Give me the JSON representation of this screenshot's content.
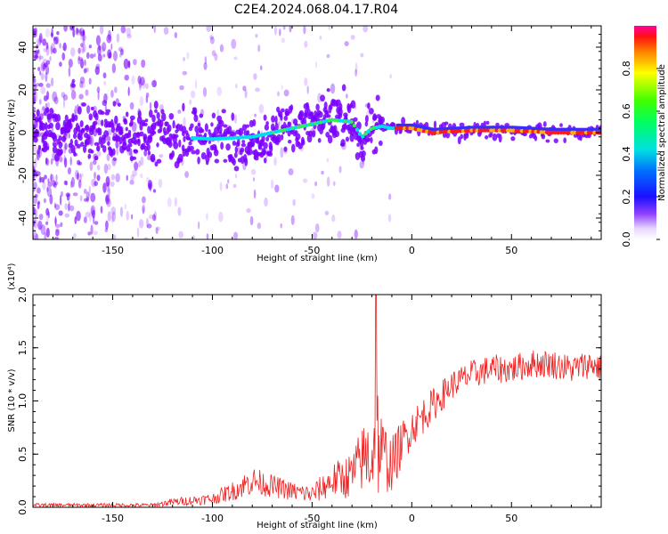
{
  "title": "C2E4.2024.068.04.17.R04",
  "colors": {
    "snr_line": "#ee2222",
    "blob_low": "#7a00ff",
    "blob_mid": "#00ddee",
    "blob_high": "#ff1a1a",
    "frame": "#000000"
  },
  "chart_data": [
    {
      "type": "heatmap",
      "name": "spectrogram",
      "title": "C2E4.2024.068.04.17.R04",
      "xlabel": "Height of straight line (km)",
      "ylabel": "Frequency (Hz)",
      "xlim": [
        -190,
        95
      ],
      "ylim": [
        -50,
        50
      ],
      "x_ticks": [
        -150,
        -100,
        -50,
        0,
        50
      ],
      "x_tick_labels": [
        "-150",
        "-100",
        "-50",
        "0",
        "50"
      ],
      "y_ticks": [
        -40,
        -20,
        0,
        20,
        40
      ],
      "y_tick_labels": [
        "-40",
        "-20",
        "0",
        "20",
        "40"
      ],
      "ridge": {
        "x": [
          -190,
          -150,
          -120,
          -100,
          -80,
          -70,
          -60,
          -50,
          -40,
          -30,
          -25,
          -20,
          -15,
          -10,
          0,
          10,
          30,
          50,
          70,
          95
        ],
        "frequency": [
          0,
          0,
          -2,
          -3,
          -2,
          0,
          2,
          4,
          6,
          5,
          -2,
          2,
          3,
          2,
          2,
          0,
          1,
          1,
          0,
          0
        ]
      },
      "colorbar": {
        "label": "Normalized spectral amplitude",
        "range": [
          0.0,
          1.0
        ],
        "ticks": [
          0.0,
          0.2,
          0.4,
          0.6,
          0.8
        ],
        "tick_labels": [
          "0.0",
          "0.2",
          "0.4",
          "0.6",
          "0.8"
        ]
      }
    },
    {
      "type": "line",
      "name": "snr",
      "xlabel": "Height of straight line (km)",
      "ylabel": "SNR (10 * v/v)",
      "scale_label": "(x10⁴)",
      "xlim": [
        -190,
        95
      ],
      "ylim": [
        0.0,
        2.0
      ],
      "x_ticks": [
        -150,
        -100,
        -50,
        0,
        50
      ],
      "x_tick_labels": [
        "-150",
        "-100",
        "-50",
        "0",
        "50"
      ],
      "y_ticks": [
        0.0,
        0.5,
        1.0,
        1.5,
        2.0
      ],
      "y_tick_labels": [
        "0.0",
        "0.5",
        "1.0",
        "1.5",
        "2.0"
      ],
      "envelope": {
        "x": [
          -190,
          -150,
          -130,
          -120,
          -100,
          -90,
          -80,
          -70,
          -60,
          -50,
          -40,
          -30,
          -25,
          -20,
          -18,
          -15,
          -10,
          -5,
          0,
          5,
          10,
          20,
          30,
          40,
          50,
          60,
          70,
          80,
          90,
          95
        ],
        "mean": [
          0.02,
          0.02,
          0.02,
          0.05,
          0.08,
          0.15,
          0.25,
          0.2,
          0.15,
          0.12,
          0.25,
          0.3,
          0.45,
          0.5,
          0.7,
          0.5,
          0.4,
          0.6,
          0.75,
          0.85,
          0.95,
          1.15,
          1.25,
          1.3,
          1.3,
          1.35,
          1.35,
          1.3,
          1.35,
          1.3
        ],
        "spread": [
          0.02,
          0.02,
          0.02,
          0.04,
          0.06,
          0.1,
          0.15,
          0.12,
          0.1,
          0.1,
          0.18,
          0.25,
          0.35,
          0.5,
          0.8,
          0.4,
          0.3,
          0.25,
          0.2,
          0.2,
          0.18,
          0.15,
          0.15,
          0.15,
          0.15,
          0.15,
          0.15,
          0.15,
          0.15,
          0.15
        ]
      },
      "peak": {
        "x": -18,
        "y": 2.0
      }
    }
  ]
}
